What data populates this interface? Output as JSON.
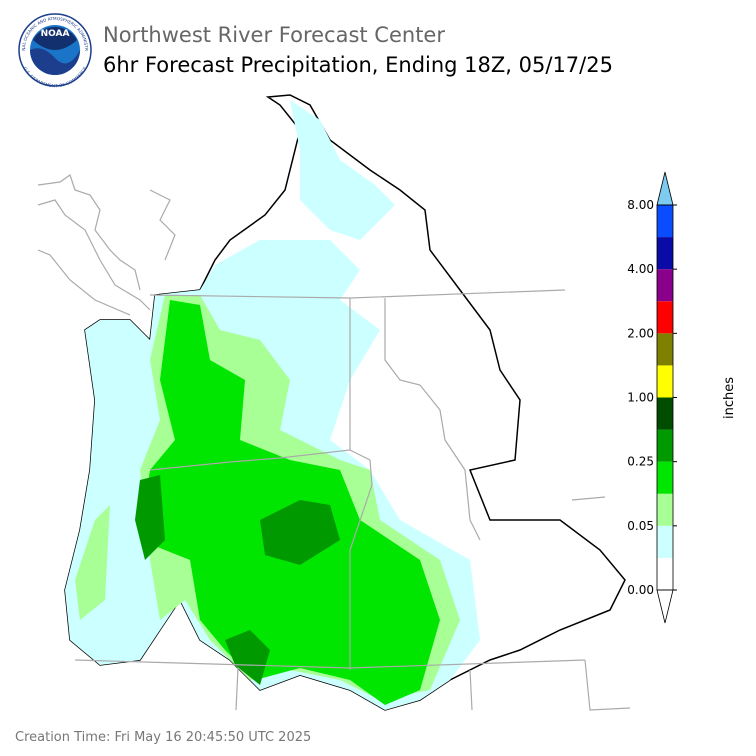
{
  "header": {
    "agency": "Northwest River Forecast Center",
    "title": "6hr Forecast Precipitation, Ending 18Z, 05/17/25"
  },
  "logo": {
    "text": "NOAA",
    "ring_top": "NATIONAL OCEANIC AND ATMOSPHERIC ADMINISTRATION",
    "ring_bottom": "U.S. DEPARTMENT OF COMMERCE"
  },
  "colorbar": {
    "label": "inches",
    "under_color": "#ffffff",
    "over_color": "#7ecbf0",
    "colors": [
      "#ffffff",
      "#ccffff",
      "#a8ff96",
      "#00e600",
      "#009900",
      "#004d00",
      "#ffff00",
      "#808000",
      "#ff0000",
      "#8b008b",
      "#0a0aa6",
      "#0a4cff"
    ],
    "ticks": [
      "0.00",
      "0.05",
      "0.25",
      "1.00",
      "2.00",
      "4.00",
      "8.00"
    ]
  },
  "footer": {
    "creation_time": "Creation Time: Fri May 16 20:45:50 UTC 2025"
  }
}
